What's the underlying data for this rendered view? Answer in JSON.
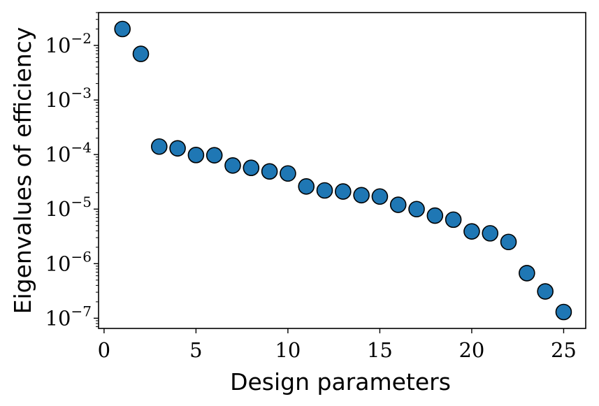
{
  "chart_data": {
    "type": "scatter",
    "xlabel": "Design parameters",
    "ylabel": "Eigenvalues of efficiency",
    "xlim": [
      -0.3,
      26.2
    ],
    "ylim": [
      6.5e-08,
      0.04
    ],
    "yscale": "log",
    "xticks": [
      0,
      5,
      10,
      15,
      20,
      25
    ],
    "xtick_labels": [
      "0",
      "5",
      "10",
      "15",
      "20",
      "25"
    ],
    "yticks": [
      1e-07,
      1e-06,
      1e-05,
      0.0001,
      0.001,
      0.01
    ],
    "ytick_labels": [
      {
        "base": "10",
        "exp": "−7"
      },
      {
        "base": "10",
        "exp": "−6"
      },
      {
        "base": "10",
        "exp": "−5"
      },
      {
        "base": "10",
        "exp": "−4"
      },
      {
        "base": "10",
        "exp": "−3"
      },
      {
        "base": "10",
        "exp": "−2"
      }
    ],
    "grid": false,
    "marker_color": "#1f77b4",
    "marker_edge_color": "#000000",
    "x": [
      1,
      2,
      3,
      4,
      5,
      6,
      7,
      8,
      9,
      10,
      11,
      12,
      13,
      14,
      15,
      16,
      17,
      18,
      19,
      20,
      21,
      22,
      23,
      24,
      25
    ],
    "y": [
      0.02,
      0.007,
      0.00014,
      0.00013,
      9.8e-05,
      9.7e-05,
      6.3e-05,
      5.7e-05,
      4.9e-05,
      4.5e-05,
      2.6e-05,
      2.2e-05,
      2.1e-05,
      1.8e-05,
      1.7e-05,
      1.2e-05,
      1e-05,
      7.6e-06,
      6.4e-06,
      3.9e-06,
      3.6e-06,
      2.5e-06,
      6.7e-07,
      3.1e-07,
      1.3e-07
    ]
  }
}
